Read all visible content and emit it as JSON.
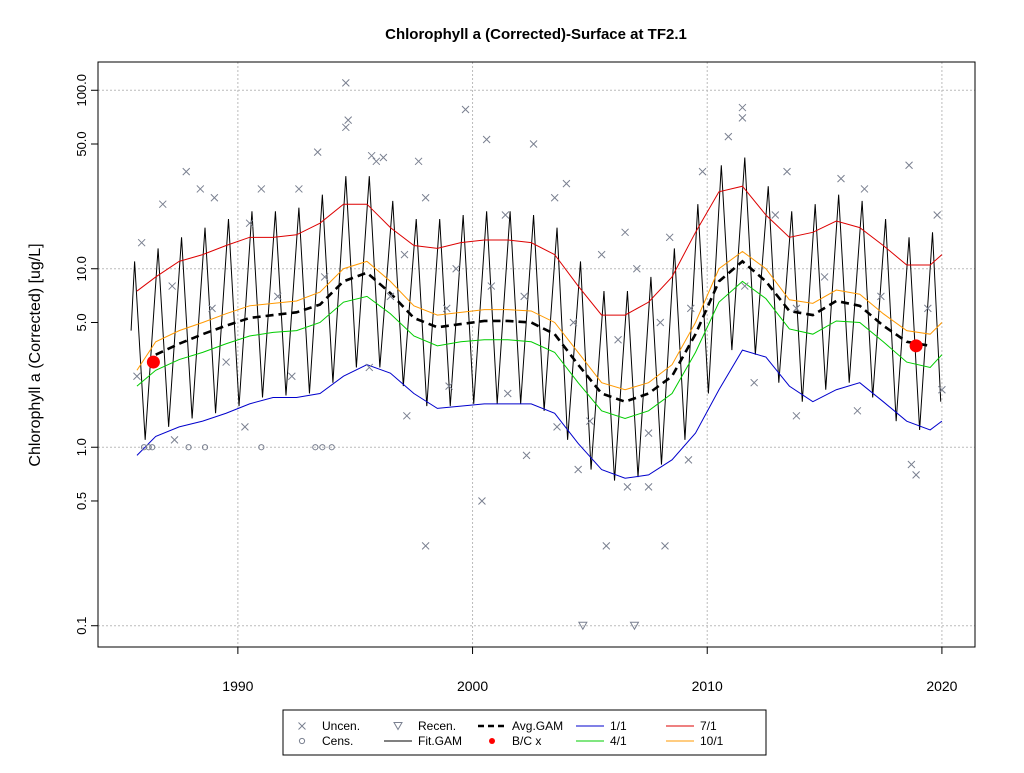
{
  "chart_data": {
    "type": "scatter",
    "title": "Chlorophyll a (Corrected)-Surface at TF2.1",
    "y_label": "Chlorophyll a (Corrected) [ug/L]",
    "log_y": true,
    "grid": true,
    "xlim": [
      1984.04,
      2021.41
    ],
    "ylim": [
      0.076,
      144
    ],
    "xticks": [
      1990,
      2000,
      2010,
      2020
    ],
    "yticks": [
      0.1,
      0.5,
      {
        "value": 1,
        "label": "1.0"
      },
      {
        "value": 5,
        "label": "5.0"
      },
      {
        "value": 10,
        "label": "10.0"
      },
      {
        "value": 50,
        "label": "50.0"
      },
      {
        "value": 100,
        "label": "100.0"
      }
    ],
    "x": [
      1985.7,
      1986.5,
      1987.5,
      1988.5,
      1989.5,
      1990.5,
      1991.5,
      1992.5,
      1993.5,
      1994.5,
      1995.5,
      1996.5,
      1997.5,
      1998.5,
      1999.5,
      2000.5,
      2001.5,
      2002.5,
      2003.5,
      2004.5,
      2005.5,
      2006.5,
      2007.5,
      2008.5,
      2009.5,
      2010.5,
      2011.5,
      2012.5,
      2013.5,
      2014.5,
      2015.5,
      2016.5,
      2017.5,
      2018.5,
      2019.5,
      2020.0
    ],
    "series": [
      {
        "name": "Uncen.",
        "kind": "points",
        "marker": "x",
        "color": "#7a8090",
        "x": [
          1994.6,
          1994.6,
          1994.7,
          1999.7,
          2011.5,
          2011.5,
          2010.9,
          1993.4,
          1995.7,
          1996.2,
          2000.6,
          2002.6,
          1987.8,
          1988.4,
          1991.0,
          1992.6,
          1995.9,
          1997.7,
          2004.0,
          2018.6,
          2015.7,
          2016.7,
          2013.4,
          2009.8,
          1986.8,
          1989.0,
          1998.0,
          2001.4,
          2003.5,
          2006.5,
          2008.4,
          2012.9,
          2019.8,
          1990.5,
          1997.1,
          1999.3,
          2005.5,
          2007.0,
          1985.9,
          1987.2,
          1988.9,
          1991.7,
          1993.7,
          1996.5,
          1998.9,
          2000.8,
          2002.2,
          2004.3,
          2006.2,
          2008.0,
          2009.3,
          2011.6,
          2013.8,
          2015.0,
          2017.4,
          2019.4,
          1989.5,
          1992.3,
          1995.6,
          1997.2,
          1999.0,
          2001.5,
          2003.6,
          2005.0,
          2007.5,
          2009.2,
          2012.0,
          2013.8,
          2016.4,
          2018.7,
          2018.9,
          2000.4,
          1998.0,
          2005.7,
          2008.2,
          2004.5,
          2006.6,
          2007.5,
          2002.3,
          1987.3,
          1990.3,
          1985.7,
          2020.0
        ],
        "values": [
          110,
          62,
          68,
          78,
          80,
          70,
          55,
          45,
          43,
          42,
          53,
          50,
          35,
          28,
          28,
          28,
          40,
          40,
          30,
          38,
          32,
          28,
          35,
          35,
          23,
          25,
          25,
          20,
          25,
          16,
          15,
          20,
          20,
          18,
          12,
          10,
          12,
          10,
          14,
          8,
          6,
          7,
          9,
          7,
          6,
          8,
          7,
          5,
          4,
          5,
          6,
          8,
          6,
          9,
          7,
          6,
          3,
          2.5,
          2.8,
          1.5,
          2.2,
          2.0,
          1.3,
          1.4,
          1.2,
          0.85,
          2.3,
          1.5,
          1.6,
          0.8,
          0.7,
          0.5,
          0.28,
          0.28,
          0.28,
          0.75,
          0.6,
          0.6,
          0.9,
          1.1,
          1.3,
          2.5,
          2.1
        ]
      },
      {
        "name": "Cens.",
        "kind": "points",
        "marker": "circle",
        "color": "#7a8090",
        "x": [
          1986.0,
          1986.2,
          1986.35,
          1987.9,
          1988.6,
          1991.0,
          1993.3,
          1993.6,
          1994.0
        ],
        "values": [
          1,
          1,
          1,
          1,
          1,
          1,
          1,
          1,
          1
        ]
      },
      {
        "name": "Recen.",
        "kind": "points",
        "marker": "triangle",
        "color": "#7a8090",
        "x": [
          2004.7,
          2006.9
        ],
        "values": [
          0.1,
          0.1
        ]
      },
      {
        "name": "Fit.GAM",
        "kind": "line",
        "color": "#000000",
        "width": 1,
        "x": [
          1985.45,
          1985.6,
          1986.05,
          1986.6,
          1987.05,
          1987.6,
          1988.05,
          1988.6,
          1989.05,
          1989.6,
          1990.05,
          1990.6,
          1991.05,
          1991.6,
          1992.05,
          1992.6,
          1993.05,
          1993.6,
          1994.05,
          1994.6,
          1995.05,
          1995.6,
          1996.05,
          1996.6,
          1997.05,
          1997.6,
          1998.05,
          1998.6,
          1999.05,
          1999.6,
          2000.05,
          2000.6,
          2001.05,
          2001.6,
          2002.05,
          2002.6,
          2003.05,
          2003.6,
          2004.05,
          2004.6,
          2005.05,
          2005.6,
          2006.05,
          2006.6,
          2007.05,
          2007.6,
          2008.05,
          2008.6,
          2009.05,
          2009.6,
          2010.05,
          2010.6,
          2011.05,
          2011.6,
          2012.05,
          2012.6,
          2013.05,
          2013.6,
          2014.05,
          2014.6,
          2015.05,
          2015.6,
          2016.05,
          2016.6,
          2017.05,
          2017.6,
          2018.05,
          2018.6,
          2019.05,
          2019.6,
          2019.95
        ],
        "values": [
          4.5,
          11,
          1.1,
          13,
          1.3,
          15,
          1.45,
          17,
          1.55,
          19,
          1.7,
          21,
          1.9,
          21,
          1.95,
          22,
          2.0,
          26,
          2.3,
          33,
          2.8,
          33,
          2.8,
          24,
          2.2,
          19,
          1.7,
          19,
          1.7,
          20,
          1.75,
          21,
          1.75,
          21,
          1.75,
          20,
          1.6,
          17,
          1.1,
          11,
          0.75,
          7.5,
          0.65,
          7.5,
          0.68,
          9,
          0.8,
          13,
          1.1,
          23,
          2.0,
          38,
          3.5,
          42,
          3.3,
          29,
          2.3,
          21,
          1.8,
          23,
          2.1,
          26,
          2.3,
          24,
          1.9,
          19,
          1.4,
          15,
          1.25,
          16,
          1.8
        ]
      },
      {
        "name": "Avg.GAM",
        "kind": "line",
        "color": "#000000",
        "width": 2.6,
        "dashed": true,
        "values": [
          null,
          3.3,
          3.8,
          4.3,
          4.8,
          5.3,
          5.5,
          5.7,
          6.3,
          8.5,
          9.5,
          7.3,
          5.3,
          4.7,
          4.9,
          5.1,
          5.1,
          5.0,
          4.3,
          2.9,
          2.0,
          1.8,
          2.0,
          2.5,
          4.3,
          8.5,
          11,
          8.5,
          5.8,
          5.5,
          6.6,
          6.2,
          4.8,
          3.9,
          3.7,
          null
        ]
      },
      {
        "name": "B/C x",
        "kind": "points",
        "marker": "dot",
        "color": "#ff0000",
        "x": [
          1986.4,
          2018.9
        ],
        "values": [
          3.0,
          3.7
        ]
      },
      {
        "name": "1/1",
        "kind": "line",
        "color": "#0000cc",
        "width": 1,
        "values": [
          0.9,
          1.15,
          1.3,
          1.4,
          1.55,
          1.75,
          1.9,
          1.9,
          2.0,
          2.5,
          2.9,
          2.6,
          2.0,
          1.65,
          1.7,
          1.75,
          1.75,
          1.75,
          1.55,
          1.05,
          0.75,
          0.67,
          0.7,
          0.85,
          1.2,
          2.1,
          3.5,
          3.2,
          2.2,
          1.8,
          2.1,
          2.3,
          1.8,
          1.4,
          1.25,
          1.4
        ]
      },
      {
        "name": "4/1",
        "kind": "line",
        "color": "#00cc00",
        "width": 1,
        "values": [
          2.2,
          2.7,
          3.1,
          3.4,
          3.8,
          4.2,
          4.4,
          4.5,
          5.0,
          6.5,
          7.0,
          5.6,
          4.2,
          3.7,
          3.9,
          4.0,
          4.0,
          3.9,
          3.4,
          2.3,
          1.6,
          1.45,
          1.6,
          2.0,
          3.4,
          6.5,
          8.5,
          6.8,
          4.6,
          4.3,
          5.1,
          5.0,
          3.9,
          3.0,
          2.8,
          3.3
        ]
      },
      {
        "name": "7/1",
        "kind": "line",
        "color": "#dd0000",
        "width": 1,
        "values": [
          7.5,
          9,
          11,
          12,
          13.5,
          15,
          15,
          15.5,
          18,
          23,
          23,
          17,
          13.5,
          13,
          14,
          14.5,
          14.5,
          14,
          12,
          8,
          5.5,
          5.5,
          6.5,
          9,
          16,
          27,
          29,
          20,
          15,
          16,
          18.5,
          17,
          13.5,
          10.5,
          10.5,
          12
        ]
      },
      {
        "name": "10/1",
        "kind": "line",
        "color": "#ff9900",
        "width": 1,
        "values": [
          2.7,
          3.9,
          4.5,
          5.0,
          5.6,
          6.2,
          6.4,
          6.6,
          7.4,
          10,
          11,
          8.5,
          6.2,
          5.5,
          5.7,
          5.9,
          5.9,
          5.8,
          5.0,
          3.4,
          2.3,
          2.1,
          2.3,
          2.9,
          5.0,
          10,
          12.5,
          10,
          6.7,
          6.4,
          7.6,
          7.2,
          5.6,
          4.5,
          4.3,
          5.0
        ]
      }
    ]
  }
}
